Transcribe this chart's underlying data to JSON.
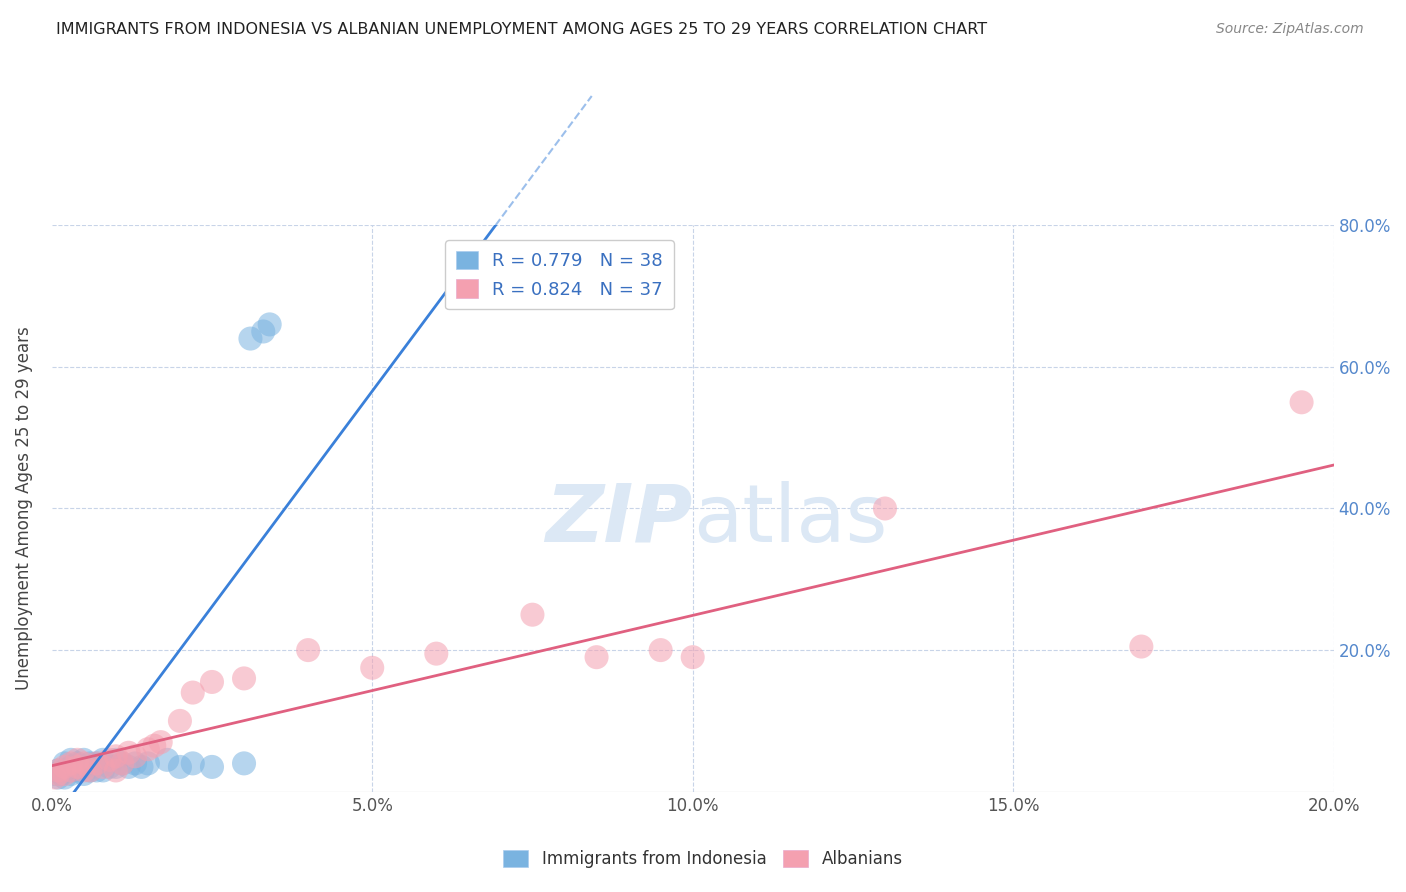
{
  "title": "IMMIGRANTS FROM INDONESIA VS ALBANIAN UNEMPLOYMENT AMONG AGES 25 TO 29 YEARS CORRELATION CHART",
  "source": "Source: ZipAtlas.com",
  "ylabel": "Unemployment Among Ages 25 to 29 years",
  "xlim": [
    0.0,
    0.2
  ],
  "ylim": [
    0.0,
    0.8
  ],
  "xtick_labels": [
    "0.0%",
    "5.0%",
    "10.0%",
    "15.0%",
    "20.0%"
  ],
  "xtick_values": [
    0.0,
    0.05,
    0.1,
    0.15,
    0.2
  ],
  "ytick_labels": [
    "20.0%",
    "40.0%",
    "60.0%",
    "80.0%"
  ],
  "ytick_values": [
    0.2,
    0.4,
    0.6,
    0.8
  ],
  "legend_r1": "R = 0.779",
  "legend_n1": "N = 38",
  "legend_r2": "R = 0.824",
  "legend_n2": "N = 37",
  "color_blue": "#7ab3e0",
  "color_pink": "#f4a0b0",
  "color_blue_line": "#3a80d9",
  "color_pink_line": "#e06080",
  "color_text_blue": "#3a70c0",
  "watermark_color": "#dce8f5",
  "background_color": "#ffffff",
  "grid_color": "#c8d4e8",
  "indonesia_x": [
    0.0005,
    0.001,
    0.001,
    0.0015,
    0.002,
    0.002,
    0.002,
    0.003,
    0.003,
    0.003,
    0.003,
    0.004,
    0.004,
    0.005,
    0.005,
    0.005,
    0.006,
    0.006,
    0.007,
    0.007,
    0.008,
    0.008,
    0.009,
    0.01,
    0.01,
    0.011,
    0.012,
    0.013,
    0.014,
    0.015,
    0.018,
    0.02,
    0.022,
    0.025,
    0.03,
    0.033,
    0.031,
    0.034
  ],
  "indonesia_y": [
    0.025,
    0.02,
    0.03,
    0.025,
    0.02,
    0.03,
    0.04,
    0.025,
    0.03,
    0.035,
    0.045,
    0.03,
    0.04,
    0.025,
    0.035,
    0.045,
    0.03,
    0.04,
    0.03,
    0.04,
    0.03,
    0.045,
    0.035,
    0.035,
    0.045,
    0.04,
    0.035,
    0.04,
    0.035,
    0.04,
    0.045,
    0.035,
    0.04,
    0.035,
    0.04,
    0.65,
    0.64,
    0.66
  ],
  "albanian_x": [
    0.0005,
    0.001,
    0.001,
    0.002,
    0.002,
    0.003,
    0.003,
    0.004,
    0.004,
    0.005,
    0.005,
    0.006,
    0.007,
    0.008,
    0.009,
    0.01,
    0.01,
    0.011,
    0.012,
    0.013,
    0.015,
    0.016,
    0.017,
    0.02,
    0.022,
    0.025,
    0.03,
    0.04,
    0.05,
    0.06,
    0.075,
    0.085,
    0.095,
    0.1,
    0.13,
    0.17,
    0.195
  ],
  "albanian_y": [
    0.02,
    0.025,
    0.03,
    0.025,
    0.035,
    0.03,
    0.04,
    0.035,
    0.045,
    0.03,
    0.04,
    0.03,
    0.04,
    0.035,
    0.045,
    0.03,
    0.05,
    0.04,
    0.055,
    0.05,
    0.06,
    0.065,
    0.07,
    0.1,
    0.14,
    0.155,
    0.16,
    0.2,
    0.175,
    0.195,
    0.25,
    0.19,
    0.2,
    0.19,
    0.4,
    0.205,
    0.55
  ]
}
